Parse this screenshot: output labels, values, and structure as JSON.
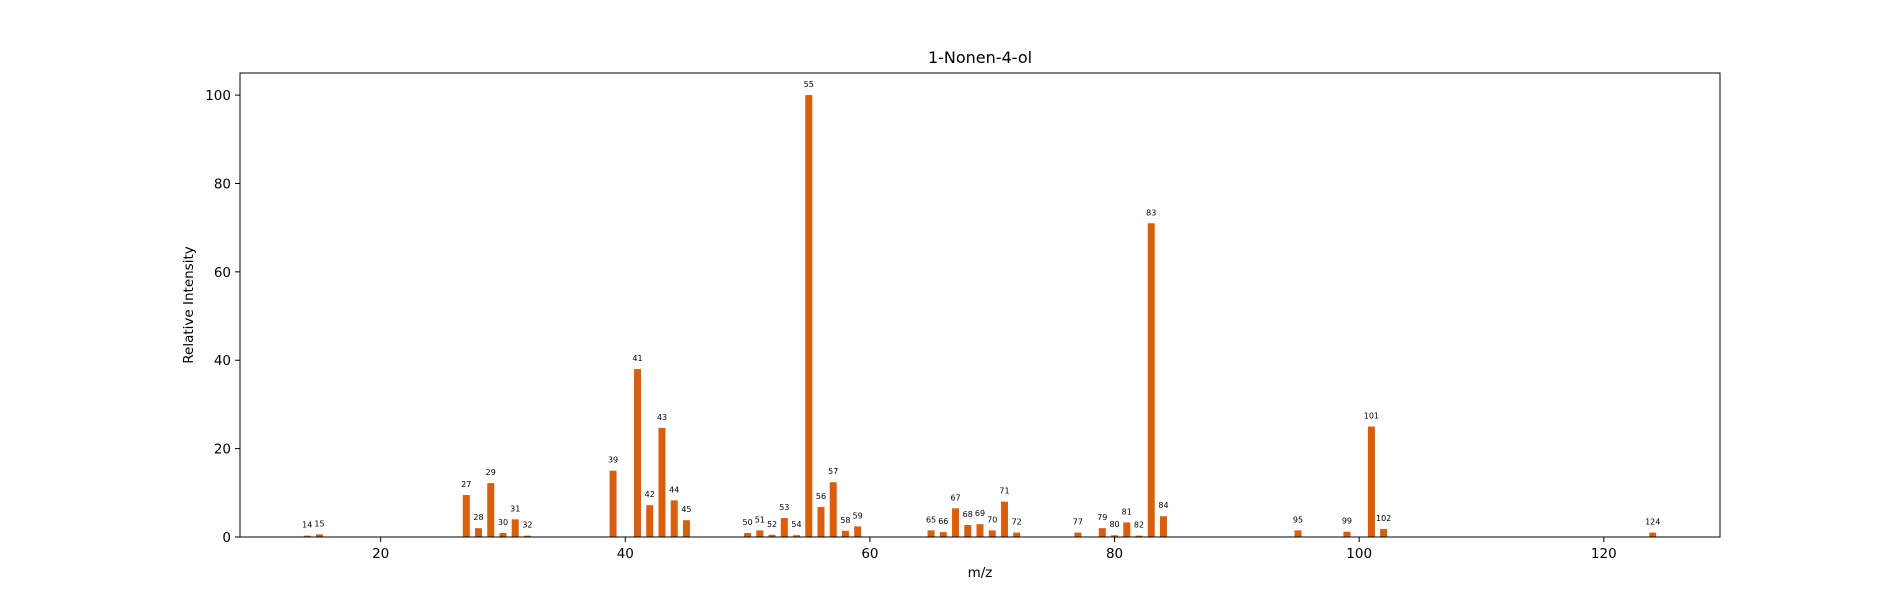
{
  "chart_data": {
    "type": "bar",
    "title": "1-Nonen-4-ol",
    "xlabel": "m/z",
    "ylabel": "Relative Intensity",
    "xlim": [
      8.5,
      129.5
    ],
    "ylim": [
      0,
      105
    ],
    "xticks": [
      20,
      40,
      60,
      80,
      100,
      120
    ],
    "yticks": [
      0,
      20,
      40,
      60,
      80,
      100
    ],
    "bar_color": "#d95f0e",
    "grid": false,
    "x": [
      14,
      15,
      27,
      28,
      29,
      30,
      31,
      32,
      39,
      41,
      42,
      43,
      44,
      45,
      50,
      51,
      52,
      53,
      54,
      55,
      56,
      57,
      58,
      59,
      65,
      66,
      67,
      68,
      69,
      70,
      71,
      72,
      77,
      79,
      80,
      81,
      82,
      83,
      84,
      95,
      99,
      101,
      102,
      124
    ],
    "values": [
      0.3,
      0.6,
      9.5,
      2.0,
      12.2,
      0.9,
      4.0,
      0.3,
      15.0,
      38.0,
      7.2,
      24.7,
      8.3,
      3.8,
      0.9,
      1.5,
      0.5,
      4.3,
      0.4,
      100.0,
      6.8,
      12.4,
      1.4,
      2.4,
      1.5,
      1.1,
      6.5,
      2.7,
      2.9,
      1.5,
      8.0,
      1.0,
      1.0,
      2.0,
      0.4,
      3.3,
      0.3,
      71.0,
      4.7,
      1.5,
      1.2,
      25.0,
      1.8,
      1.0
    ]
  }
}
